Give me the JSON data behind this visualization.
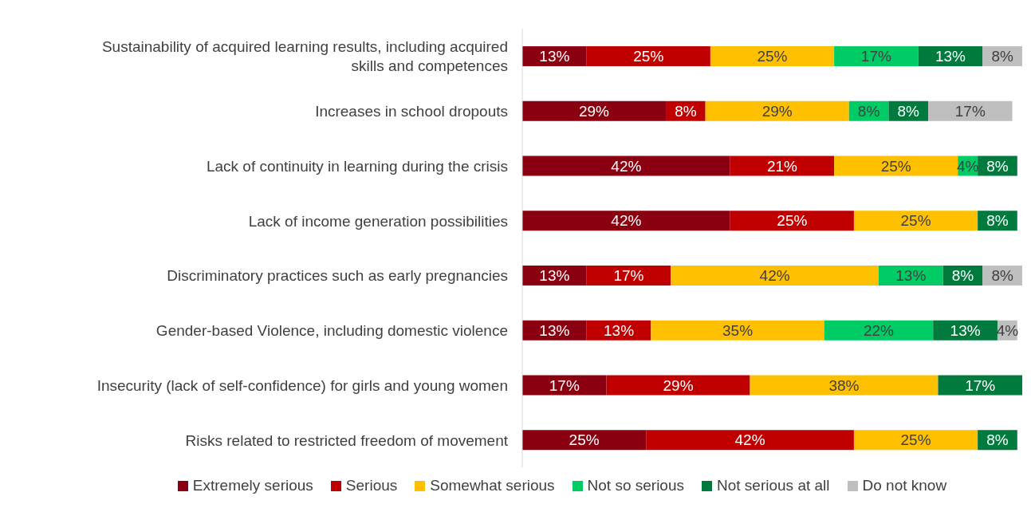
{
  "chart_data": {
    "type": "bar",
    "orientation": "horizontal",
    "stacked": true,
    "legend": "bottom",
    "tick_labels": "y",
    "categories": [
      "Sustainability of acquired learning results, including acquired skills and competences",
      "Increases in school dropouts",
      "Lack of continuity in learning during the crisis",
      "Lack of income generation possibilities",
      "Discriminatory practices such as early pregnancies",
      "Gender-based Violence, including domestic violence",
      "Insecurity (lack of self-confidence) for girls and young women",
      "Risks related to restricted freedom of movement"
    ],
    "series": [
      {
        "name": "Extremely serious",
        "color": "#8b0010",
        "values": [
          13,
          29,
          42,
          42,
          13,
          13,
          17,
          25
        ],
        "value_labels": [
          "13%",
          "29%",
          "42%",
          "42%",
          "13%",
          "13%",
          "17%",
          "25%"
        ]
      },
      {
        "name": "Serious",
        "color": "#c00000",
        "values": [
          25,
          8,
          21,
          25,
          17,
          13,
          29,
          42
        ],
        "value_labels": [
          "25%",
          "8%",
          "21%",
          "25%",
          "17%",
          "13%",
          "29%",
          "42%"
        ]
      },
      {
        "name": "Somewhat serious",
        "color": "#ffc000",
        "values": [
          25,
          29,
          25,
          25,
          42,
          35,
          38,
          25
        ],
        "value_labels": [
          "25%",
          "29%",
          "25%",
          "25%",
          "42%",
          "35%",
          "38%",
          "25%"
        ]
      },
      {
        "name": "Not so serious",
        "color": "#00cc66",
        "values": [
          17,
          8,
          4,
          null,
          13,
          22,
          null,
          null
        ],
        "value_labels": [
          "17%",
          "8%",
          "4%",
          null,
          "13%",
          "22%",
          null,
          null
        ]
      },
      {
        "name": "Not serious at all",
        "color": "#007a3d",
        "values": [
          13,
          8,
          8,
          8,
          8,
          13,
          17,
          8
        ],
        "value_labels": [
          "13%",
          "8%",
          "8%",
          "8%",
          "8%",
          "13%",
          "17%",
          "8%"
        ]
      },
      {
        "name": "Do not know",
        "color": "#bfbfbf",
        "values": [
          8,
          17,
          null,
          null,
          8,
          4,
          null,
          null
        ],
        "value_labels": [
          "8%",
          "17%",
          null,
          null,
          "8%",
          "4%",
          null,
          null
        ]
      }
    ]
  }
}
